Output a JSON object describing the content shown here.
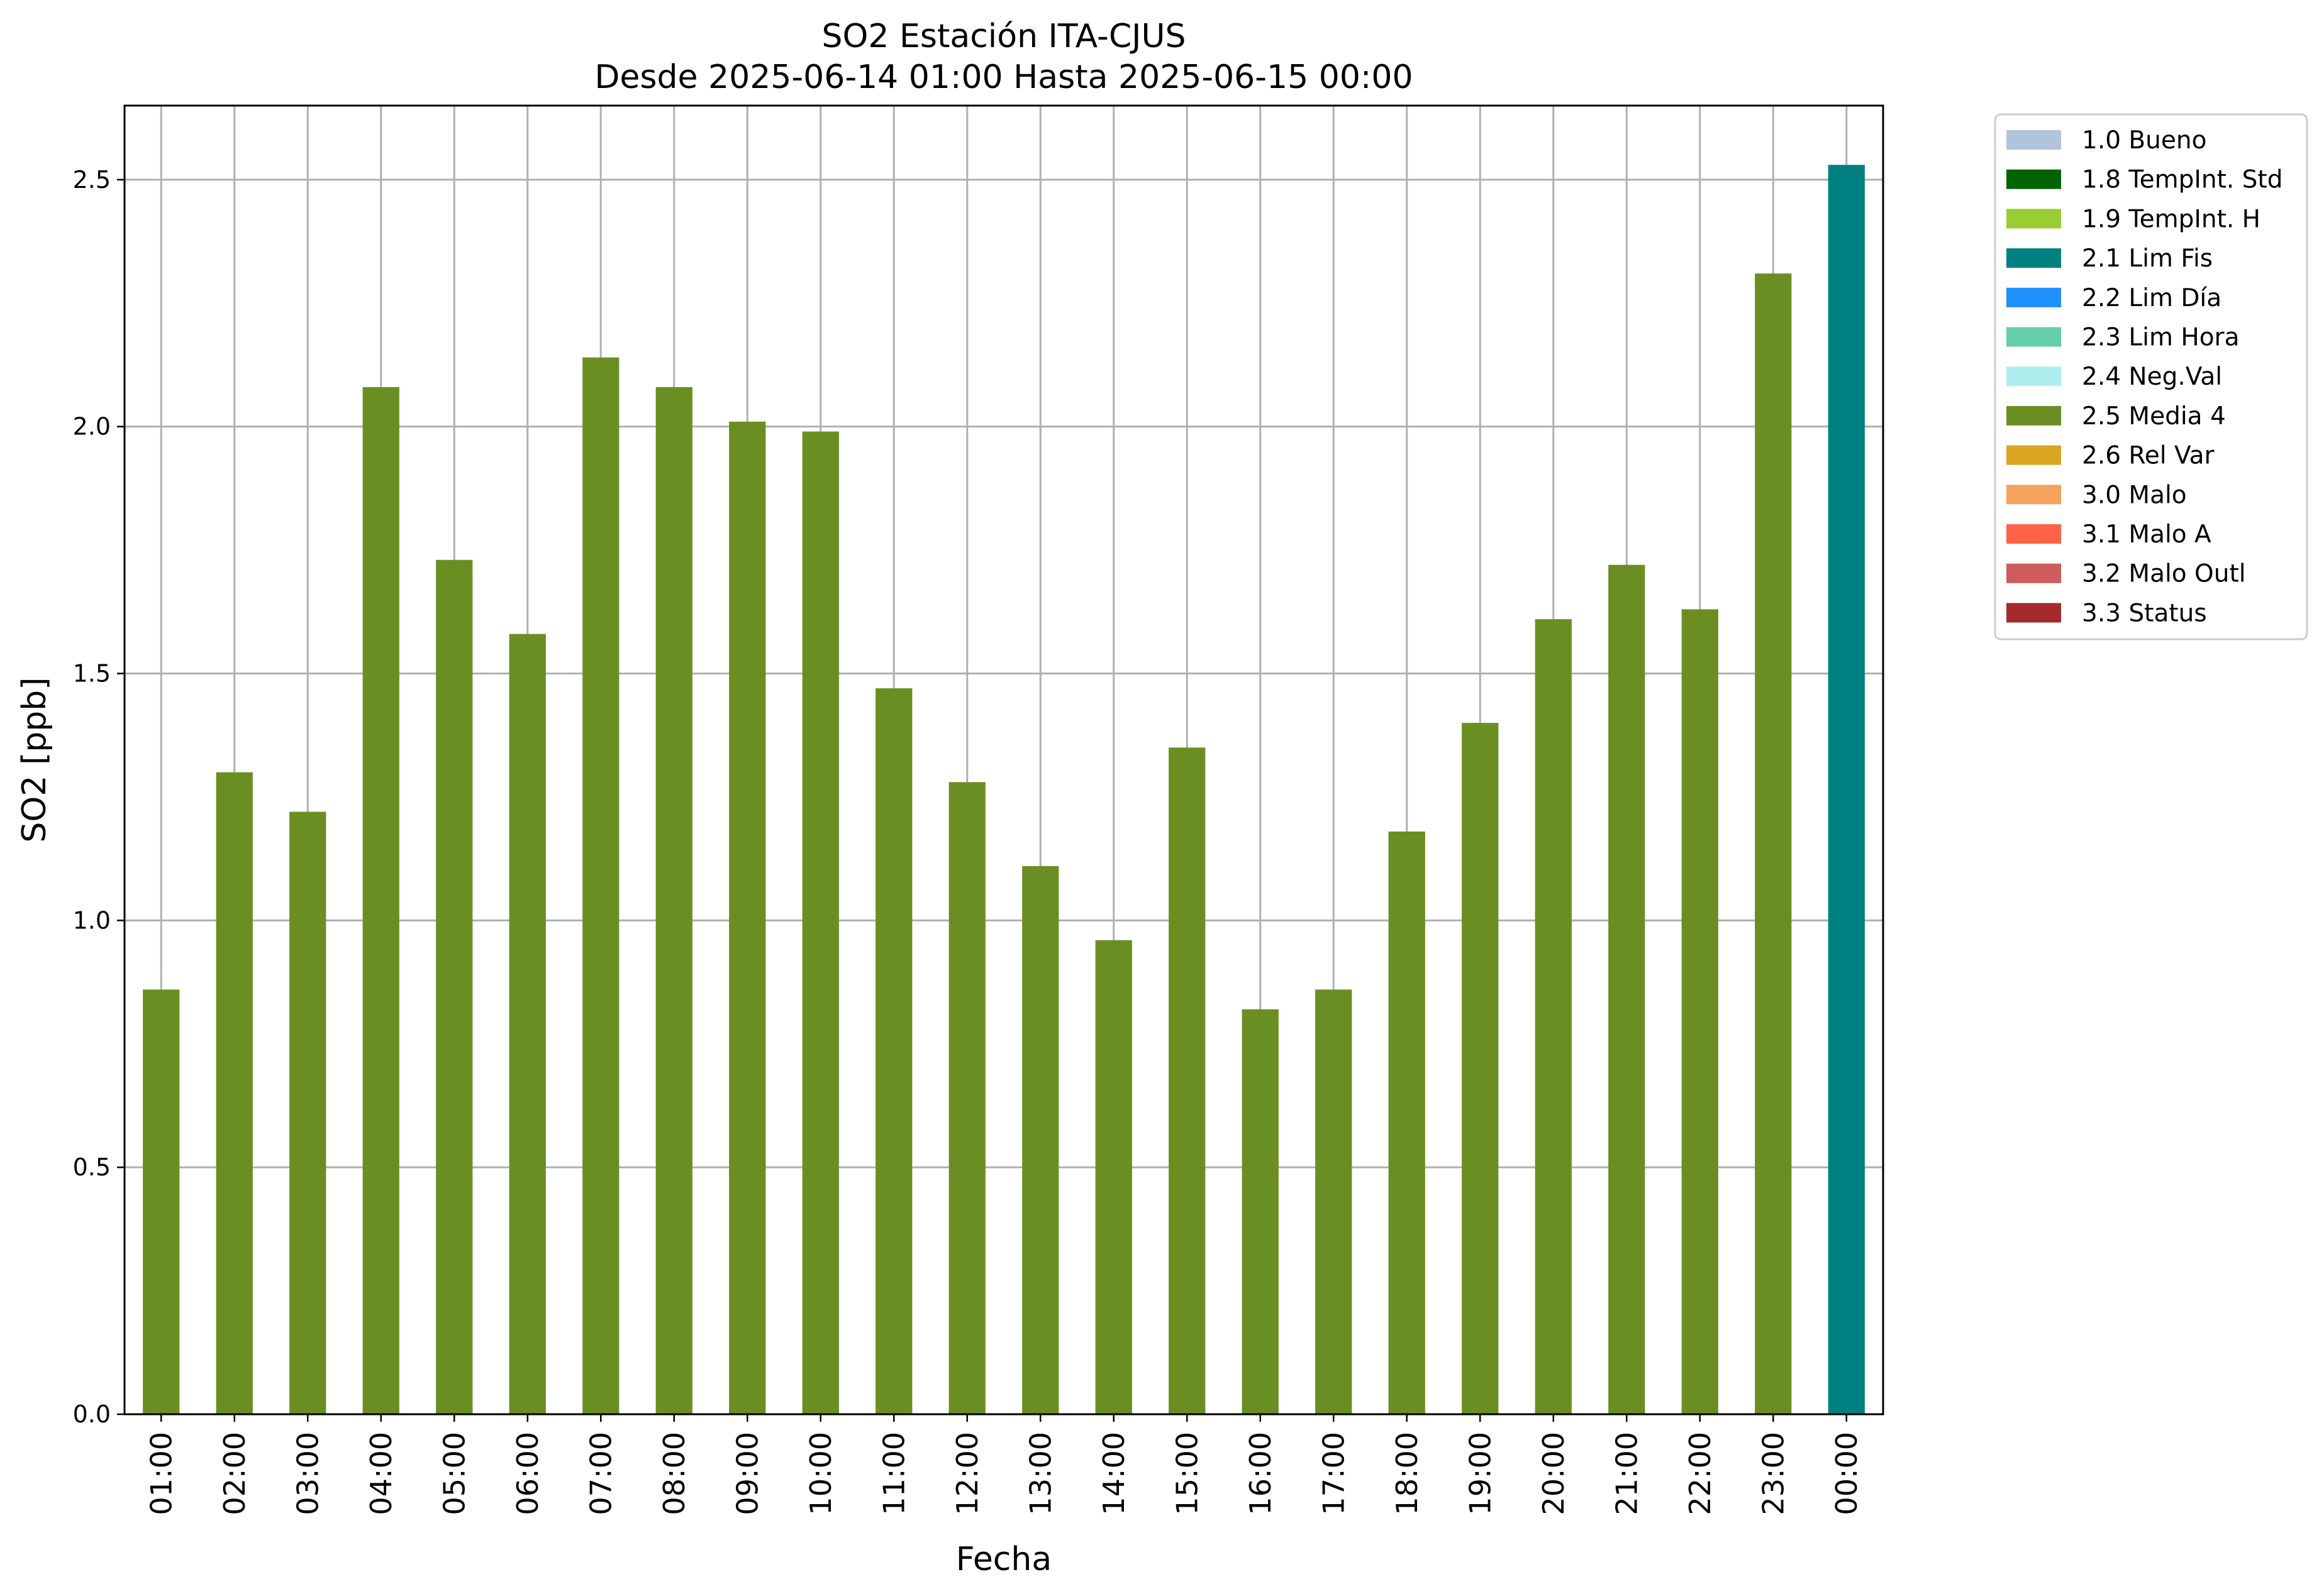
{
  "chart_data": {
    "type": "bar",
    "title": "SO2 Estación ITA-CJUS",
    "subtitle": "Desde 2025-06-14 01:00 Hasta 2025-06-15 00:00",
    "xlabel": "Fecha",
    "ylabel": "SO2 [ppb]",
    "ylim": [
      0,
      2.65
    ],
    "yticks": [
      "0.0",
      "0.5",
      "1.0",
      "1.5",
      "2.0",
      "2.5"
    ],
    "grid": true,
    "legend_position": "outside top-right",
    "categories": [
      "01:00",
      "02:00",
      "03:00",
      "04:00",
      "05:00",
      "06:00",
      "07:00",
      "08:00",
      "09:00",
      "10:00",
      "11:00",
      "12:00",
      "13:00",
      "14:00",
      "15:00",
      "16:00",
      "17:00",
      "18:00",
      "19:00",
      "20:00",
      "21:00",
      "22:00",
      "23:00",
      "00:00"
    ],
    "values": [
      0.86,
      1.3,
      1.22,
      2.08,
      1.73,
      1.58,
      2.14,
      2.08,
      2.01,
      1.99,
      1.47,
      1.28,
      1.11,
      0.96,
      1.35,
      0.82,
      0.86,
      1.18,
      1.4,
      1.61,
      1.72,
      1.63,
      2.31,
      2.53
    ],
    "bar_flags": [
      "2.5 Media 4",
      "2.5 Media 4",
      "2.5 Media 4",
      "2.5 Media 4",
      "2.5 Media 4",
      "2.5 Media 4",
      "2.5 Media 4",
      "2.5 Media 4",
      "2.5 Media 4",
      "2.5 Media 4",
      "2.5 Media 4",
      "2.5 Media 4",
      "2.5 Media 4",
      "2.5 Media 4",
      "2.5 Media 4",
      "2.5 Media 4",
      "2.5 Media 4",
      "2.5 Media 4",
      "2.5 Media 4",
      "2.5 Media 4",
      "2.5 Media 4",
      "2.5 Media 4",
      "2.5 Media 4",
      "2.1 Lim Fis"
    ],
    "legend": [
      {
        "label": "1.0 Bueno",
        "color": "#b0c4de"
      },
      {
        "label": "1.8 TempInt. Std",
        "color": "#006400"
      },
      {
        "label": "1.9 TempInt. H",
        "color": "#9acd32"
      },
      {
        "label": "2.1 Lim Fis",
        "color": "#008080"
      },
      {
        "label": "2.2 Lim Día",
        "color": "#1e90ff"
      },
      {
        "label": "2.3 Lim Hora",
        "color": "#66cdaa"
      },
      {
        "label": "2.4 Neg.Val",
        "color": "#afeeee"
      },
      {
        "label": "2.5 Media 4",
        "color": "#6b8e23"
      },
      {
        "label": "2.6 Rel Var",
        "color": "#daa520"
      },
      {
        "label": "3.0 Malo",
        "color": "#f4a460"
      },
      {
        "label": "3.1 Malo A",
        "color": "#ff6347"
      },
      {
        "label": "3.2 Malo Outl",
        "color": "#cd5c5c"
      },
      {
        "label": "3.3 Status",
        "color": "#a52a2a"
      }
    ]
  }
}
